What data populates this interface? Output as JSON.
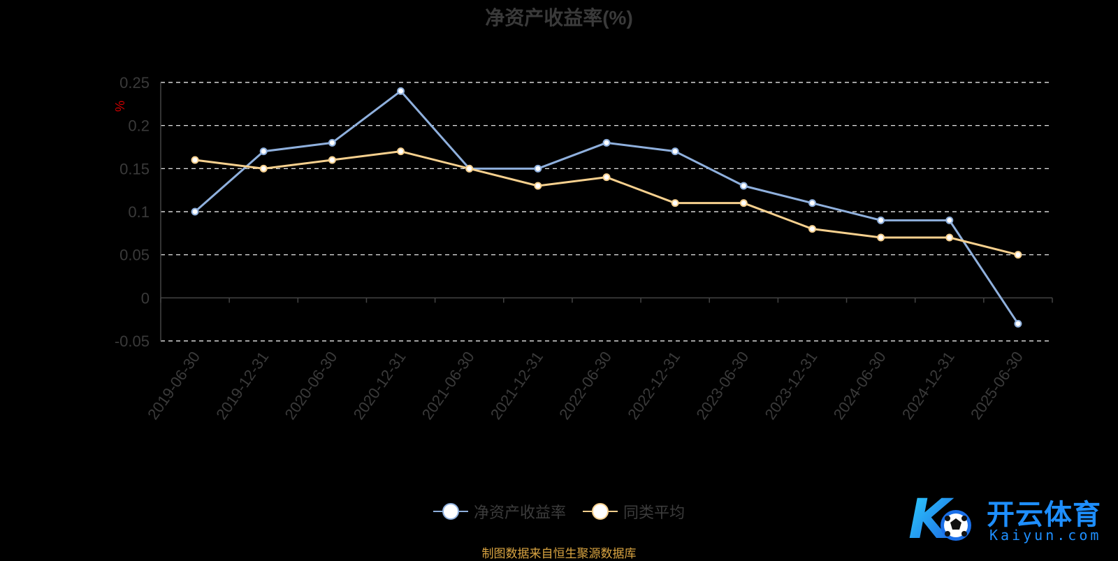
{
  "title": "净资产收益率(%)",
  "source": "制图数据来自恒生聚源数据库",
  "watermark": {
    "text": "开云体育",
    "sub": "Kaiyun.com",
    "logo_letter": "K"
  },
  "colors": {
    "series1": "#8fb0dd",
    "series2": "#f6d08e",
    "axis": "#444444",
    "grid": "#ffffff",
    "tick": "#3a3a3a",
    "unit": "#cc0000"
  },
  "chart_data": {
    "type": "line",
    "title": "净资产收益率(%)",
    "ylabel": "%",
    "xlabel": "",
    "ylim": [
      -0.05,
      0.25
    ],
    "yticks": [
      0.25,
      0.2,
      0.15,
      0.1,
      0.05,
      0,
      -0.05
    ],
    "ytick_labels": [
      "0.25",
      "0.2",
      "0.15",
      "0.1",
      "0.05",
      "0",
      "-0.05"
    ],
    "grid": true,
    "legend": "bottom-center",
    "categories": [
      "2019-06-30",
      "2019-12-31",
      "2020-06-30",
      "2020-12-31",
      "2021-06-30",
      "2021-12-31",
      "2022-06-30",
      "2022-12-31",
      "2023-06-30",
      "2023-12-31",
      "2024-06-30",
      "2024-12-31",
      "2025-06-30"
    ],
    "series": [
      {
        "name": "净资产收益率",
        "color": "#8fb0dd",
        "values": [
          0.1,
          0.17,
          0.18,
          0.24,
          0.15,
          0.15,
          0.18,
          0.17,
          0.13,
          0.11,
          0.09,
          0.09,
          -0.03
        ]
      },
      {
        "name": "同类平均",
        "color": "#f6d08e",
        "values": [
          0.16,
          0.15,
          0.16,
          0.17,
          0.15,
          0.13,
          0.14,
          0.11,
          0.11,
          0.08,
          0.07,
          0.07,
          0.05
        ]
      }
    ]
  }
}
